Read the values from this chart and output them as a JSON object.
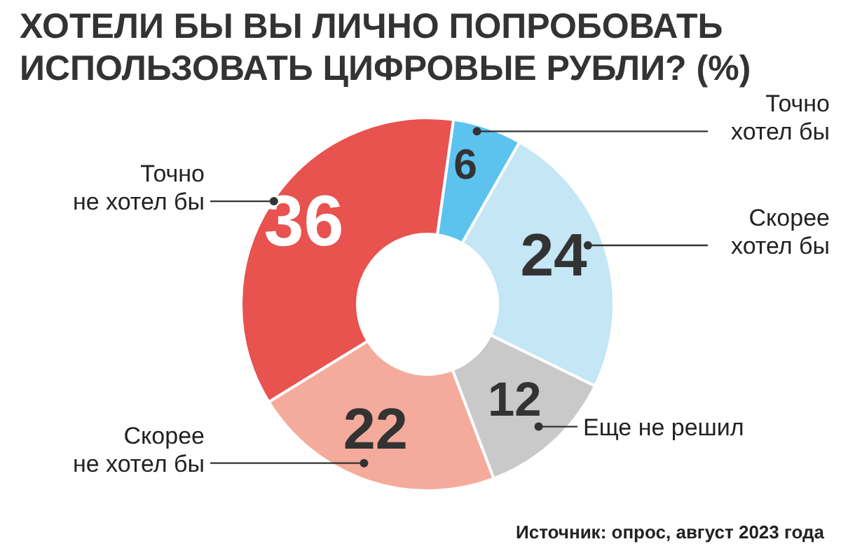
{
  "chart_data": {
    "type": "donut",
    "title": "ХОТЕЛИ БЫ ВЫ ЛИЧНО ПОПРОБОВАТЬ\nИСПОЛЬЗОВАТЬ ЦИФРОВЫЕ РУБЛИ? (%)",
    "categories": [
      "Точно\nхотел бы",
      "Скорее\nхотел бы",
      "Еще не решил",
      "Скорее\nне хотел бы",
      "Точно\nне хотел бы"
    ],
    "values": [
      6,
      24,
      12,
      22,
      36
    ],
    "colors": [
      "#5cc3ee",
      "#c4e6f5",
      "#c9c9c9",
      "#f5ab9b",
      "#e8524f"
    ],
    "data_labels": true,
    "annotations": [
      "Источник: опрос, август 2023 года"
    ]
  }
}
